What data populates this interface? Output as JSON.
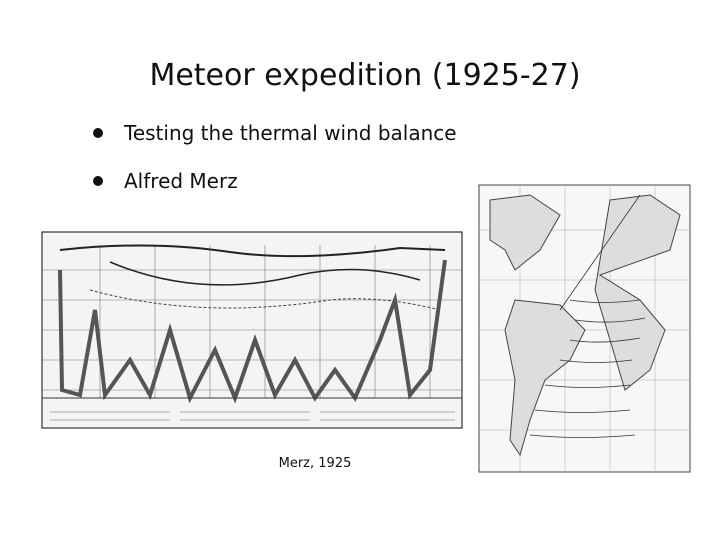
{
  "title": "Meteor expedition (1925-27)",
  "bullets": [
    "Testing the thermal wind balance",
    "Alfred Merz"
  ],
  "caption": "Merz, 1925"
}
